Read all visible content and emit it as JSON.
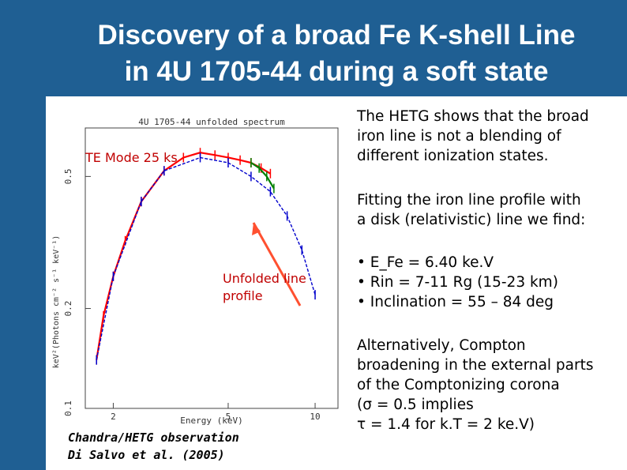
{
  "slide": {
    "title_line1": "Discovery of a broad Fe K-shell Line",
    "title_line2": "in 4U 1705-44 during a soft state",
    "colors": {
      "header": "#1f5f93",
      "title_text": "#ffffff",
      "label_red": "#c00000"
    }
  },
  "plot": {
    "title": "4U 1705-44 unfolded spectrum",
    "ylabel": "keV²(Photons cm⁻² s⁻¹ keV⁻¹)",
    "xlabel": "Energy (keV)",
    "mode_label": "TE Mode 25 ks",
    "arrow_label_line1": "Unfolded line",
    "arrow_label_line2": "profile",
    "citation_line1": "Chandra/HETG observation",
    "citation_line2": "Di Salvo et al. (2005)"
  },
  "chart_data": {
    "type": "line",
    "title": "4U 1705-44 unfolded spectrum",
    "xlabel": "Energy (keV)",
    "ylabel": "keV²(Photons cm⁻² s⁻¹ keV⁻¹)",
    "x_scale": "log",
    "y_scale": "log",
    "xlim": [
      1.6,
      12
    ],
    "ylim": [
      0.1,
      0.7
    ],
    "x_ticks": [
      2,
      5,
      10
    ],
    "y_ticks": [
      0.1,
      0.2,
      0.5
    ],
    "grid": false,
    "series": [
      {
        "color": "#ff0000",
        "x": [
          1.75,
          1.85,
          2.0,
          2.2,
          2.5,
          3.0,
          3.5,
          4.0,
          4.5,
          5.0,
          5.5,
          6.0,
          6.5,
          7.0
        ],
        "y": [
          0.14,
          0.19,
          0.25,
          0.32,
          0.42,
          0.52,
          0.57,
          0.59,
          0.58,
          0.57,
          0.56,
          0.55,
          0.53,
          0.51
        ]
      },
      {
        "color": "#008000",
        "x": [
          6.0,
          6.4,
          6.8,
          7.2
        ],
        "y": [
          0.55,
          0.53,
          0.5,
          0.46
        ]
      },
      {
        "color": "#0000cc",
        "x": [
          1.75,
          2.0,
          2.5,
          3.0,
          4.0,
          5.0,
          6.0,
          7.0,
          8.0,
          9.0,
          10.0
        ],
        "y": [
          0.14,
          0.25,
          0.42,
          0.52,
          0.57,
          0.55,
          0.5,
          0.45,
          0.38,
          0.3,
          0.22
        ]
      }
    ]
  },
  "text": {
    "p1_line1": "The HETG shows that the broad",
    "p1_line2": "iron line is not a blending of",
    "p1_line3": "different ionization states.",
    "p2_line1": "Fitting the iron line profile with",
    "p2_line2": "a disk (relativistic) line we find:",
    "bullet1": "• E_Fe = 6.40 ke.V",
    "bullet2": "• Rin = 7-11 Rg (15-23 km)",
    "bullet3": "• Inclination = 55 – 84 deg",
    "p3_line1": "Alternatively, Compton",
    "p3_line2": "broadening in the external parts",
    "p3_line3": "of the Comptonizing corona",
    "p3_line4": "(σ = 0.5 implies",
    "p3_line5": "τ = 1.4 for k.T = 2 ke.V)"
  }
}
